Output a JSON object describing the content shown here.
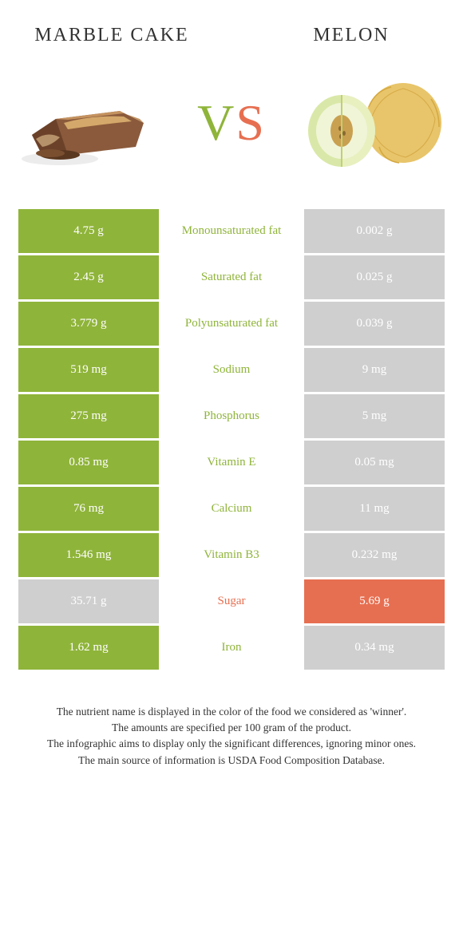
{
  "colors": {
    "green": "#8fb43a",
    "orange": "#e76f51",
    "grey": "#cfcfcf",
    "text": "#333333",
    "white": "#ffffff"
  },
  "foods": {
    "left": {
      "name": "MARBLE CAKE",
      "color": "#8fb43a"
    },
    "right": {
      "name": "MELON",
      "color": "#e76f51"
    }
  },
  "vs": {
    "v": "V",
    "s": "S"
  },
  "rows": [
    {
      "left": "4.75 g",
      "label": "Monounsaturated fat",
      "right": "0.002 g",
      "winner": "left"
    },
    {
      "left": "2.45 g",
      "label": "Saturated fat",
      "right": "0.025 g",
      "winner": "left"
    },
    {
      "left": "3.779 g",
      "label": "Polyunsaturated fat",
      "right": "0.039 g",
      "winner": "left"
    },
    {
      "left": "519 mg",
      "label": "Sodium",
      "right": "9 mg",
      "winner": "left"
    },
    {
      "left": "275 mg",
      "label": "Phosphorus",
      "right": "5 mg",
      "winner": "left"
    },
    {
      "left": "0.85 mg",
      "label": "Vitamin E",
      "right": "0.05 mg",
      "winner": "left"
    },
    {
      "left": "76 mg",
      "label": "Calcium",
      "right": "11 mg",
      "winner": "left"
    },
    {
      "left": "1.546 mg",
      "label": "Vitamin B3",
      "right": "0.232 mg",
      "winner": "left"
    },
    {
      "left": "35.71 g",
      "label": "Sugar",
      "right": "5.69 g",
      "winner": "right"
    },
    {
      "left": "1.62 mg",
      "label": "Iron",
      "right": "0.34 mg",
      "winner": "left"
    }
  ],
  "notes": [
    "The nutrient name is displayed in the color of the food we considered as 'winner'.",
    "The amounts are specified per 100 gram of the product.",
    "The infographic aims to display only the significant differences, ignoring minor ones.",
    "The main source of information is USDA Food Composition Database."
  ]
}
